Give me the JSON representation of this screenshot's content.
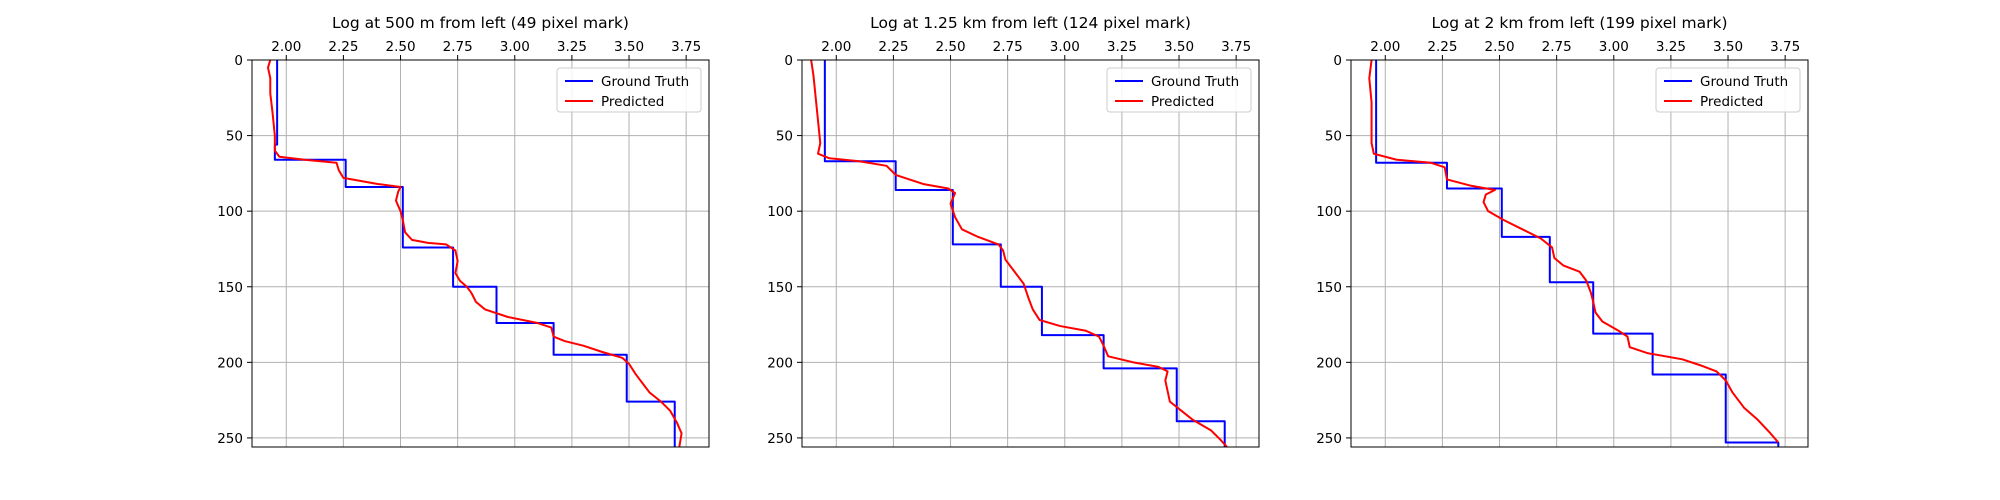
{
  "chart_data": [
    {
      "type": "line",
      "title": "Log at 500 m from left (49 pixel mark)",
      "xlabel": "",
      "ylabel": "",
      "xlim": [
        1.85,
        3.85
      ],
      "ylim": [
        256,
        0
      ],
      "x_axis_position": "top",
      "y_inverted": true,
      "grid": true,
      "legend": "top-right",
      "xticks": [
        "2.00",
        "2.25",
        "2.50",
        "2.75",
        "3.00",
        "3.25",
        "3.50",
        "3.75"
      ],
      "yticks": [
        "0",
        "50",
        "100",
        "150",
        "200",
        "250"
      ],
      "series": [
        {
          "name": "Ground Truth",
          "color": "#0000ff",
          "points": [
            [
              1.96,
              0
            ],
            [
              1.96,
              56
            ],
            [
              1.95,
              56
            ],
            [
              1.95,
              66
            ],
            [
              2.26,
              66
            ],
            [
              2.26,
              84
            ],
            [
              2.51,
              84
            ],
            [
              2.51,
              124
            ],
            [
              2.73,
              124
            ],
            [
              2.73,
              150
            ],
            [
              2.92,
              150
            ],
            [
              2.92,
              174
            ],
            [
              3.17,
              174
            ],
            [
              3.17,
              195
            ],
            [
              3.49,
              195
            ],
            [
              3.49,
              226
            ],
            [
              3.7,
              226
            ],
            [
              3.7,
              256
            ]
          ]
        },
        {
          "name": "Predicted",
          "color": "#ff0000",
          "points": [
            [
              1.93,
              0
            ],
            [
              1.92,
              5
            ],
            [
              1.93,
              12
            ],
            [
              1.93,
              22
            ],
            [
              1.94,
              35
            ],
            [
              1.95,
              50
            ],
            [
              1.95,
              60
            ],
            [
              1.97,
              64
            ],
            [
              2.08,
              66
            ],
            [
              2.22,
              68
            ],
            [
              2.23,
              73
            ],
            [
              2.25,
              78
            ],
            [
              2.4,
              82
            ],
            [
              2.5,
              84
            ],
            [
              2.49,
              87
            ],
            [
              2.48,
              93
            ],
            [
              2.5,
              100
            ],
            [
              2.51,
              106
            ],
            [
              2.52,
              114
            ],
            [
              2.55,
              119
            ],
            [
              2.62,
              121
            ],
            [
              2.7,
              122
            ],
            [
              2.74,
              126
            ],
            [
              2.75,
              133
            ],
            [
              2.74,
              141
            ],
            [
              2.76,
              146
            ],
            [
              2.79,
              150
            ],
            [
              2.81,
              154
            ],
            [
              2.83,
              160
            ],
            [
              2.87,
              165
            ],
            [
              2.97,
              170
            ],
            [
              3.1,
              174
            ],
            [
              3.16,
              177
            ],
            [
              3.17,
              183
            ],
            [
              3.22,
              186
            ],
            [
              3.3,
              189
            ],
            [
              3.38,
              193
            ],
            [
              3.47,
              197
            ],
            [
              3.5,
              201
            ],
            [
              3.53,
              208
            ],
            [
              3.56,
              214
            ],
            [
              3.59,
              220
            ],
            [
              3.64,
              226
            ],
            [
              3.68,
              232
            ],
            [
              3.71,
              240
            ],
            [
              3.73,
              247
            ],
            [
              3.72,
              256
            ]
          ]
        }
      ]
    },
    {
      "type": "line",
      "title": "Log at 1.25 km from left (124 pixel mark)",
      "xlabel": "",
      "ylabel": "",
      "xlim": [
        1.85,
        3.85
      ],
      "ylim": [
        256,
        0
      ],
      "x_axis_position": "top",
      "y_inverted": true,
      "grid": true,
      "legend": "top-right",
      "xticks": [
        "2.00",
        "2.25",
        "2.50",
        "2.75",
        "3.00",
        "3.25",
        "3.50",
        "3.75"
      ],
      "yticks": [
        "0",
        "50",
        "100",
        "150",
        "200",
        "250"
      ],
      "series": [
        {
          "name": "Ground Truth",
          "color": "#0000ff",
          "points": [
            [
              1.95,
              0
            ],
            [
              1.95,
              67
            ],
            [
              2.26,
              67
            ],
            [
              2.26,
              86
            ],
            [
              2.51,
              86
            ],
            [
              2.51,
              122
            ],
            [
              2.72,
              122
            ],
            [
              2.72,
              150
            ],
            [
              2.9,
              150
            ],
            [
              2.9,
              182
            ],
            [
              3.17,
              182
            ],
            [
              3.17,
              204
            ],
            [
              3.49,
              204
            ],
            [
              3.49,
              239
            ],
            [
              3.7,
              239
            ],
            [
              3.7,
              256
            ]
          ]
        },
        {
          "name": "Predicted",
          "color": "#ff0000",
          "points": [
            [
              1.89,
              0
            ],
            [
              1.9,
              10
            ],
            [
              1.91,
              25
            ],
            [
              1.92,
              40
            ],
            [
              1.93,
              55
            ],
            [
              1.92,
              62
            ],
            [
              1.97,
              65
            ],
            [
              2.1,
              67
            ],
            [
              2.22,
              70
            ],
            [
              2.26,
              76
            ],
            [
              2.38,
              82
            ],
            [
              2.49,
              85
            ],
            [
              2.52,
              88
            ],
            [
              2.5,
              95
            ],
            [
              2.52,
              104
            ],
            [
              2.55,
              112
            ],
            [
              2.62,
              117
            ],
            [
              2.71,
              122
            ],
            [
              2.73,
              126
            ],
            [
              2.74,
              132
            ],
            [
              2.78,
              140
            ],
            [
              2.82,
              148
            ],
            [
              2.84,
              157
            ],
            [
              2.86,
              165
            ],
            [
              2.89,
              172
            ],
            [
              2.98,
              176
            ],
            [
              3.09,
              179
            ],
            [
              3.15,
              183
            ],
            [
              3.17,
              189
            ],
            [
              3.19,
              196
            ],
            [
              3.3,
              200
            ],
            [
              3.41,
              203
            ],
            [
              3.45,
              206
            ],
            [
              3.44,
              212
            ],
            [
              3.45,
              219
            ],
            [
              3.46,
              226
            ],
            [
              3.51,
              232
            ],
            [
              3.56,
              238
            ],
            [
              3.64,
              245
            ],
            [
              3.68,
              251
            ],
            [
              3.71,
              256
            ]
          ]
        }
      ]
    },
    {
      "type": "line",
      "title": "Log at 2 km from left (199 pixel mark)",
      "xlabel": "",
      "ylabel": "",
      "xlim": [
        1.85,
        3.85
      ],
      "ylim": [
        256,
        0
      ],
      "x_axis_position": "top",
      "y_inverted": true,
      "grid": true,
      "legend": "top-right",
      "xticks": [
        "2.00",
        "2.25",
        "2.50",
        "2.75",
        "3.00",
        "3.25",
        "3.50",
        "3.75"
      ],
      "yticks": [
        "0",
        "50",
        "100",
        "150",
        "200",
        "250"
      ],
      "series": [
        {
          "name": "Ground Truth",
          "color": "#0000ff",
          "points": [
            [
              1.96,
              0
            ],
            [
              1.96,
              68
            ],
            [
              2.27,
              68
            ],
            [
              2.27,
              85
            ],
            [
              2.51,
              85
            ],
            [
              2.51,
              117
            ],
            [
              2.72,
              117
            ],
            [
              2.72,
              147
            ],
            [
              2.91,
              147
            ],
            [
              2.91,
              181
            ],
            [
              3.17,
              181
            ],
            [
              3.17,
              208
            ],
            [
              3.49,
              208
            ],
            [
              3.49,
              253
            ],
            [
              3.72,
              253
            ],
            [
              3.72,
              256
            ]
          ]
        },
        {
          "name": "Predicted",
          "color": "#ff0000",
          "points": [
            [
              1.94,
              0
            ],
            [
              1.93,
              12
            ],
            [
              1.94,
              28
            ],
            [
              1.94,
              45
            ],
            [
              1.94,
              55
            ],
            [
              1.95,
              62
            ],
            [
              2.05,
              66
            ],
            [
              2.2,
              68
            ],
            [
              2.26,
              71
            ],
            [
              2.27,
              79
            ],
            [
              2.37,
              83
            ],
            [
              2.48,
              86
            ],
            [
              2.44,
              89
            ],
            [
              2.43,
              94
            ],
            [
              2.45,
              100
            ],
            [
              2.52,
              106
            ],
            [
              2.6,
              112
            ],
            [
              2.68,
              118
            ],
            [
              2.73,
              124
            ],
            [
              2.74,
              131
            ],
            [
              2.78,
              136
            ],
            [
              2.85,
              140
            ],
            [
              2.88,
              146
            ],
            [
              2.9,
              154
            ],
            [
              2.91,
              160
            ],
            [
              2.92,
              167
            ],
            [
              2.95,
              173
            ],
            [
              3.02,
              179
            ],
            [
              3.06,
              183
            ],
            [
              3.07,
              190
            ],
            [
              3.15,
              194
            ],
            [
              3.3,
              198
            ],
            [
              3.38,
              202
            ],
            [
              3.45,
              206
            ],
            [
              3.49,
              212
            ],
            [
              3.52,
              220
            ],
            [
              3.57,
              230
            ],
            [
              3.63,
              238
            ],
            [
              3.68,
              246
            ],
            [
              3.72,
              253
            ]
          ]
        }
      ]
    }
  ]
}
